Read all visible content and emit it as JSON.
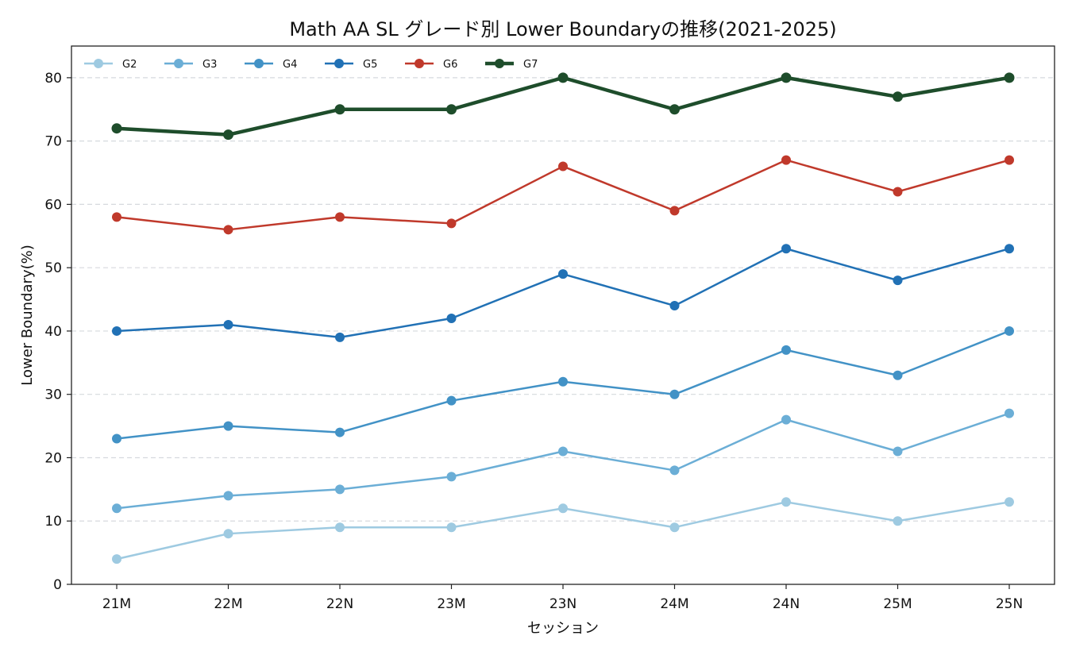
{
  "chart_data": {
    "type": "line",
    "title": "Math AA SL グレード別 Lower Boundaryの推移(2021-2025)",
    "xlabel": "セッション",
    "ylabel": "Lower Boundary(%)",
    "categories": [
      "21M",
      "22M",
      "22N",
      "23M",
      "23N",
      "24M",
      "24N",
      "25M",
      "25N"
    ],
    "ylim": [
      0,
      85
    ],
    "yticks": [
      0,
      10,
      20,
      30,
      40,
      50,
      60,
      70,
      80
    ],
    "grid": "horizontal dashed",
    "legend_position": "top-left",
    "series": [
      {
        "name": "G2",
        "color": "#9ecae1",
        "values": [
          4,
          8,
          9,
          9,
          12,
          9,
          13,
          10,
          13
        ]
      },
      {
        "name": "G3",
        "color": "#6baed6",
        "values": [
          12,
          14,
          15,
          17,
          21,
          18,
          26,
          21,
          27
        ]
      },
      {
        "name": "G4",
        "color": "#4292c6",
        "values": [
          23,
          25,
          24,
          29,
          32,
          30,
          37,
          33,
          40
        ]
      },
      {
        "name": "G5",
        "color": "#2171b5",
        "values": [
          40,
          41,
          39,
          42,
          49,
          44,
          53,
          48,
          53
        ]
      },
      {
        "name": "G6",
        "color": "#c0392b",
        "values": [
          58,
          56,
          58,
          57,
          66,
          59,
          67,
          62,
          67
        ]
      },
      {
        "name": "G7",
        "color": "#1e4d2b",
        "values": [
          72,
          71,
          75,
          75,
          80,
          75,
          80,
          77,
          80
        ]
      }
    ]
  }
}
